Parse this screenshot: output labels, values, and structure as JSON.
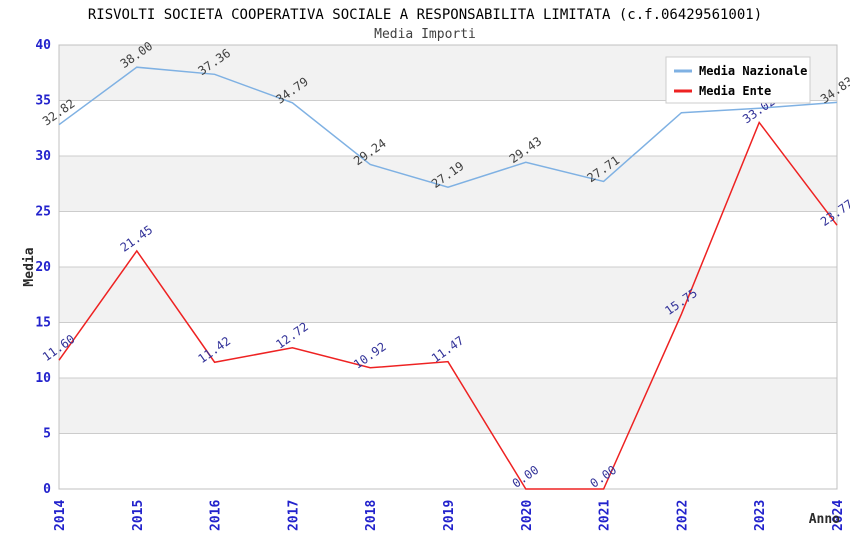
{
  "header": {
    "title": "RISVOLTI SOCIETA COOPERATIVA SOCIALE A RESPONSABILITA LIMITATA (c.f.06429561001)",
    "subtitle": "Media Importi"
  },
  "axes": {
    "y_label": "Media",
    "x_label": "Anno",
    "y_ticks": [
      0,
      5,
      10,
      15,
      20,
      25,
      30,
      35,
      40
    ],
    "ylim": [
      0,
      40
    ]
  },
  "legend": {
    "position": "top-right",
    "items": [
      {
        "label": "Media Nazionale",
        "color": "#7fb1e3"
      },
      {
        "label": "Media Ente",
        "color": "#ee2222"
      }
    ]
  },
  "chart_data": {
    "type": "line",
    "x": [
      "2014",
      "2015",
      "2016",
      "2017",
      "2018",
      "2019",
      "2020",
      "2021",
      "2022",
      "2023",
      "2024"
    ],
    "series": [
      {
        "name": "Media Nazionale",
        "color": "#7fb1e3",
        "label_color": "#404040",
        "values": [
          32.82,
          38.0,
          37.36,
          34.79,
          29.24,
          27.19,
          29.43,
          27.71,
          33.9,
          34.3,
          34.83
        ],
        "labels": [
          "32.82",
          "38.00",
          "37.36",
          "34.79",
          "29.24",
          "27.19",
          "29.43",
          "27.71",
          "",
          "",
          "34.83"
        ]
      },
      {
        "name": "Media Ente",
        "color": "#ee2222",
        "label_color": "#333399",
        "values": [
          11.6,
          21.45,
          11.42,
          12.72,
          10.92,
          11.47,
          0.0,
          0.0,
          15.75,
          33.02,
          23.77
        ],
        "labels": [
          "11.60",
          "21.45",
          "11.42",
          "12.72",
          "10.92",
          "11.47",
          "0.00",
          "0.00",
          "15.75",
          "33.02",
          "23.77"
        ]
      }
    ],
    "ylim": [
      0,
      40
    ],
    "grid": {
      "band_colors": [
        "#ffffff",
        "#f2f2f2"
      ],
      "line_color": "#cccccc",
      "border_color": "#c0c0c0"
    },
    "title": "Media Importi",
    "xlabel": "Anno",
    "ylabel": "Media",
    "legend_position": "top-right"
  },
  "colors": {
    "tick_label": "#2222cc",
    "background": "#ffffff"
  }
}
